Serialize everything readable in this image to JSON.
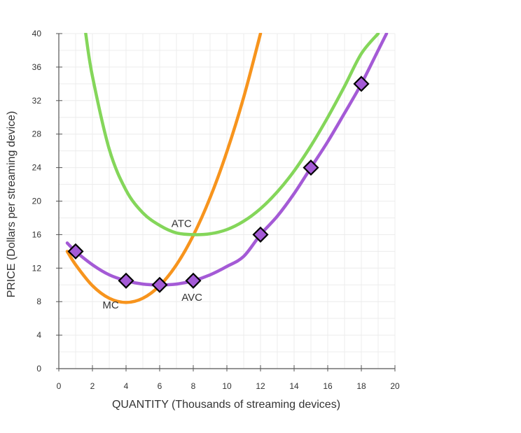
{
  "chart_data": {
    "type": "line",
    "xlabel": "QUANTITY (Thousands of streaming devices)",
    "ylabel": "PRICE (Dollars per streaming device)",
    "xlim": [
      0,
      20
    ],
    "ylim": [
      0,
      40
    ],
    "x_ticks": [
      "0",
      "2",
      "4",
      "6",
      "8",
      "10",
      "12",
      "14",
      "16",
      "18",
      "20"
    ],
    "y_ticks": [
      "0",
      "4",
      "8",
      "12",
      "16",
      "20",
      "24",
      "28",
      "32",
      "36",
      "40"
    ],
    "grid": true,
    "series": [
      {
        "name": "MC",
        "color": "#f7941d",
        "points": [
          [
            0.5,
            14
          ],
          [
            1,
            12.4
          ],
          [
            2,
            9.9
          ],
          [
            3,
            8.4
          ],
          [
            4,
            7.9
          ],
          [
            5,
            8.4
          ],
          [
            6,
            9.9
          ],
          [
            7,
            12.4
          ],
          [
            8,
            15.9
          ],
          [
            9,
            20.4
          ],
          [
            10,
            25.9
          ],
          [
            11,
            32.4
          ],
          [
            12,
            40
          ]
        ]
      },
      {
        "name": "ATC",
        "color": "#84d65a",
        "points": [
          [
            1.6,
            40
          ],
          [
            2,
            34.9
          ],
          [
            3,
            26.2
          ],
          [
            4,
            21.3
          ],
          [
            5,
            18.6
          ],
          [
            6,
            17.1
          ],
          [
            7,
            16.2
          ],
          [
            8,
            16
          ],
          [
            9,
            16.1
          ],
          [
            10,
            16.6
          ],
          [
            11,
            17.6
          ],
          [
            12,
            19.1
          ],
          [
            13,
            21.1
          ],
          [
            14,
            23.6
          ],
          [
            15,
            26.6
          ],
          [
            16,
            30
          ],
          [
            17,
            33.7
          ],
          [
            18,
            37.6
          ],
          [
            19,
            40
          ]
        ]
      },
      {
        "name": "AVC",
        "color": "#a45ad6",
        "points": [
          [
            0.5,
            15
          ],
          [
            1,
            14
          ],
          [
            2,
            12.4
          ],
          [
            3,
            11.2
          ],
          [
            4,
            10.5
          ],
          [
            5,
            10.1
          ],
          [
            6,
            10
          ],
          [
            7,
            10.1
          ],
          [
            8,
            10.5
          ],
          [
            9,
            11.2
          ],
          [
            10,
            12.2
          ],
          [
            11,
            13.4
          ],
          [
            12,
            16
          ],
          [
            13,
            18.2
          ],
          [
            14,
            20.9
          ],
          [
            15,
            24
          ],
          [
            16,
            27.1
          ],
          [
            17,
            30.5
          ],
          [
            18,
            34
          ],
          [
            19,
            38
          ],
          [
            19.5,
            40
          ]
        ]
      }
    ],
    "markers": {
      "series": "AVC",
      "shape": "diamond",
      "fill": "#a45ad6",
      "stroke": "#000000",
      "points": [
        [
          1,
          14
        ],
        [
          4,
          10.5
        ],
        [
          6,
          10
        ],
        [
          8,
          10.5
        ],
        [
          12,
          16
        ],
        [
          15,
          24
        ],
        [
          18,
          34
        ]
      ]
    },
    "annotations": [
      {
        "text": "ATC",
        "x": 6.7,
        "y": 16.9
      },
      {
        "text": "AVC",
        "x": 7.3,
        "y": 8.1
      },
      {
        "text": "MC",
        "x": 2.6,
        "y": 7.2
      }
    ]
  }
}
